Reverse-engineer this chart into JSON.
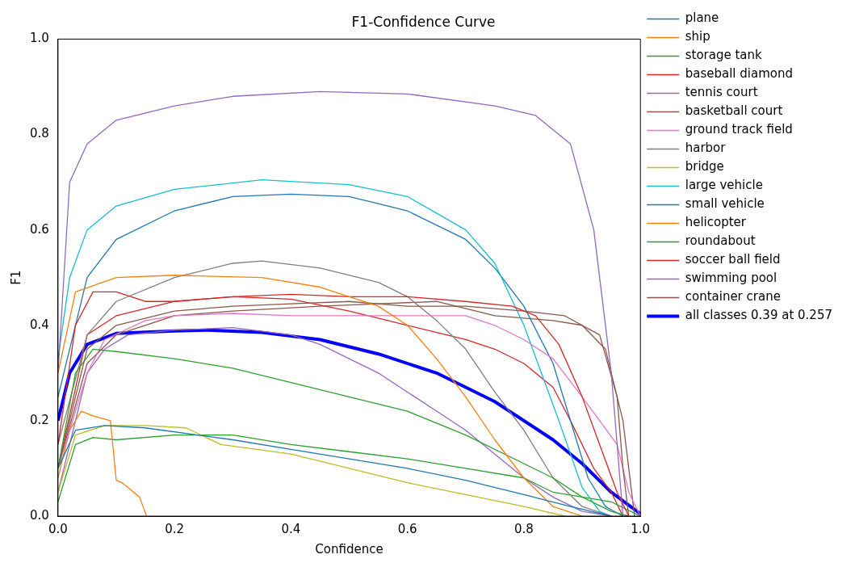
{
  "chart_data": {
    "type": "line",
    "title": "F1-Confidence Curve",
    "xlabel": "Confidence",
    "ylabel": "F1",
    "xlim": [
      0,
      1
    ],
    "ylim": [
      0,
      1
    ],
    "xticks": [
      {
        "value": 0,
        "label": "0.0"
      },
      {
        "value": 0.2,
        "label": "0.2"
      },
      {
        "value": 0.4,
        "label": "0.4"
      },
      {
        "value": 0.6,
        "label": "0.6"
      },
      {
        "value": 0.8,
        "label": "0.8"
      },
      {
        "value": 1,
        "label": "1.0"
      }
    ],
    "yticks": [
      {
        "value": 0,
        "label": "0.0"
      },
      {
        "value": 0.2,
        "label": "0.2"
      },
      {
        "value": 0.4,
        "label": "0.4"
      },
      {
        "value": 0.6,
        "label": "0.6"
      },
      {
        "value": 0.8,
        "label": "0.8"
      },
      {
        "value": 1,
        "label": "1.0"
      }
    ],
    "grid": false,
    "legend": "right",
    "marker": "none",
    "line_style": "solid",
    "series": [
      {
        "name": "plane",
        "color": "#1f77b4",
        "x": [
          0,
          0.03,
          0.08,
          0.15,
          0.3,
          0.4,
          0.5,
          0.6,
          0.7,
          0.8,
          0.88,
          0.95
        ],
        "values": [
          0.1,
          0.18,
          0.19,
          0.185,
          0.16,
          0.14,
          0.12,
          0.1,
          0.075,
          0.045,
          0.02,
          0
        ]
      },
      {
        "name": "ship",
        "color": "#ff7f0e",
        "x": [
          0,
          0.03,
          0.1,
          0.2,
          0.35,
          0.45,
          0.55,
          0.6,
          0.65,
          0.7,
          0.75,
          0.8,
          0.85,
          0.9
        ],
        "values": [
          0.3,
          0.47,
          0.5,
          0.505,
          0.5,
          0.48,
          0.44,
          0.4,
          0.33,
          0.25,
          0.16,
          0.08,
          0.02,
          0
        ]
      },
      {
        "name": "storage tank",
        "color": "#2ca02c",
        "x": [
          0,
          0.03,
          0.06,
          0.1,
          0.2,
          0.3,
          0.4,
          0.5,
          0.6,
          0.7,
          0.8,
          0.85,
          0.9,
          0.95,
          0.98
        ],
        "values": [
          0.1,
          0.3,
          0.35,
          0.345,
          0.33,
          0.31,
          0.28,
          0.25,
          0.22,
          0.17,
          0.11,
          0.08,
          0.04,
          0.01,
          0
        ]
      },
      {
        "name": "baseball diamond",
        "color": "#d62728",
        "x": [
          0,
          0.03,
          0.06,
          0.1,
          0.15,
          0.2,
          0.3,
          0.4,
          0.5,
          0.6,
          0.7,
          0.78,
          0.82,
          0.86,
          0.9,
          0.93,
          0.96,
          0.98
        ],
        "values": [
          0.15,
          0.4,
          0.47,
          0.47,
          0.45,
          0.45,
          0.46,
          0.465,
          0.46,
          0.46,
          0.45,
          0.44,
          0.42,
          0.36,
          0.25,
          0.15,
          0.05,
          0
        ]
      },
      {
        "name": "tennis court",
        "color": "#9467bd",
        "x": [
          0,
          0.02,
          0.05,
          0.1,
          0.2,
          0.3,
          0.45,
          0.6,
          0.75,
          0.82,
          0.88,
          0.92,
          0.95,
          0.97
        ],
        "values": [
          0.3,
          0.7,
          0.78,
          0.83,
          0.86,
          0.88,
          0.89,
          0.885,
          0.86,
          0.84,
          0.78,
          0.6,
          0.3,
          0
        ]
      },
      {
        "name": "basketball court",
        "color": "#8c564b",
        "x": [
          0,
          0.05,
          0.1,
          0.2,
          0.3,
          0.4,
          0.5,
          0.6,
          0.7,
          0.8,
          0.87,
          0.93,
          0.96,
          0.97,
          0.98
        ],
        "values": [
          0.1,
          0.35,
          0.4,
          0.43,
          0.44,
          0.445,
          0.45,
          0.44,
          0.44,
          0.43,
          0.42,
          0.38,
          0.25,
          0.1,
          0
        ]
      },
      {
        "name": "ground track field",
        "color": "#e377c2",
        "x": [
          0,
          0.05,
          0.08,
          0.15,
          0.2,
          0.3,
          0.4,
          0.5,
          0.6,
          0.7,
          0.75,
          0.8,
          0.85,
          0.9,
          0.93,
          0.96,
          0.98,
          1
        ],
        "values": [
          0.1,
          0.3,
          0.37,
          0.41,
          0.42,
          0.425,
          0.42,
          0.42,
          0.42,
          0.42,
          0.4,
          0.37,
          0.33,
          0.25,
          0.2,
          0.15,
          0.05,
          0
        ]
      },
      {
        "name": "harbor",
        "color": "#7f7f7f",
        "x": [
          0,
          0.05,
          0.1,
          0.2,
          0.3,
          0.35,
          0.45,
          0.55,
          0.6,
          0.65,
          0.7,
          0.75,
          0.8,
          0.85,
          0.9,
          0.95
        ],
        "values": [
          0.15,
          0.38,
          0.45,
          0.5,
          0.53,
          0.535,
          0.52,
          0.49,
          0.46,
          0.41,
          0.35,
          0.26,
          0.18,
          0.08,
          0.02,
          0
        ]
      },
      {
        "name": "bridge",
        "color": "#bcbd22",
        "x": [
          0,
          0.03,
          0.08,
          0.15,
          0.22,
          0.28,
          0.4,
          0.5,
          0.6,
          0.7,
          0.8,
          0.87
        ],
        "values": [
          0.05,
          0.17,
          0.19,
          0.19,
          0.185,
          0.15,
          0.13,
          0.1,
          0.07,
          0.045,
          0.02,
          0
        ]
      },
      {
        "name": "large vehicle",
        "color": "#17becf",
        "x": [
          0,
          0.02,
          0.05,
          0.1,
          0.2,
          0.35,
          0.5,
          0.6,
          0.7,
          0.75,
          0.8,
          0.86,
          0.9,
          0.93,
          0.95
        ],
        "values": [
          0.33,
          0.5,
          0.6,
          0.65,
          0.685,
          0.705,
          0.695,
          0.67,
          0.6,
          0.53,
          0.4,
          0.2,
          0.06,
          0.01,
          0
        ]
      },
      {
        "name": "small vehicle",
        "color": "#1f77b4",
        "x": [
          0,
          0.05,
          0.1,
          0.2,
          0.3,
          0.4,
          0.5,
          0.6,
          0.7,
          0.75,
          0.8,
          0.85,
          0.88,
          0.91,
          0.94,
          0.97
        ],
        "values": [
          0.25,
          0.5,
          0.58,
          0.64,
          0.67,
          0.675,
          0.67,
          0.64,
          0.58,
          0.52,
          0.44,
          0.32,
          0.2,
          0.08,
          0.02,
          0
        ]
      },
      {
        "name": "helicopter",
        "color": "#ff7f0e",
        "x": [
          0,
          0.02,
          0.04,
          0.06,
          0.09,
          0.1,
          0.11,
          0.12,
          0.14,
          0.152
        ],
        "values": [
          0.08,
          0.18,
          0.22,
          0.21,
          0.2,
          0.075,
          0.07,
          0.06,
          0.04,
          0
        ]
      },
      {
        "name": "roundabout",
        "color": "#2ca02c",
        "x": [
          0,
          0.03,
          0.06,
          0.1,
          0.2,
          0.3,
          0.4,
          0.5,
          0.6,
          0.7,
          0.8,
          0.85,
          0.9,
          0.95,
          1
        ],
        "values": [
          0.03,
          0.15,
          0.165,
          0.16,
          0.17,
          0.17,
          0.15,
          0.135,
          0.12,
          0.1,
          0.08,
          0.05,
          0.04,
          0.03,
          0
        ]
      },
      {
        "name": "soccer ball field",
        "color": "#d62728",
        "x": [
          0,
          0.05,
          0.1,
          0.2,
          0.3,
          0.4,
          0.5,
          0.6,
          0.7,
          0.75,
          0.8,
          0.85,
          0.88,
          0.92,
          0.95,
          0.97
        ],
        "values": [
          0.1,
          0.38,
          0.42,
          0.45,
          0.46,
          0.455,
          0.43,
          0.4,
          0.37,
          0.35,
          0.32,
          0.27,
          0.2,
          0.1,
          0.05,
          0
        ]
      },
      {
        "name": "swimming pool",
        "color": "#9467bd",
        "x": [
          0,
          0.05,
          0.08,
          0.12,
          0.2,
          0.3,
          0.4,
          0.45,
          0.5,
          0.55,
          0.6,
          0.65,
          0.7,
          0.75,
          0.8,
          0.85,
          0.9,
          0.95
        ],
        "values": [
          0.05,
          0.3,
          0.35,
          0.38,
          0.39,
          0.395,
          0.38,
          0.36,
          0.33,
          0.3,
          0.26,
          0.22,
          0.18,
          0.13,
          0.08,
          0.04,
          0.01,
          0
        ]
      },
      {
        "name": "container crane",
        "color": "#8c564b",
        "x": [
          0,
          0.05,
          0.1,
          0.2,
          0.3,
          0.45,
          0.55,
          0.65,
          0.75,
          0.85,
          0.9,
          0.94,
          0.97,
          0.99
        ],
        "values": [
          0.1,
          0.32,
          0.38,
          0.42,
          0.43,
          0.44,
          0.445,
          0.45,
          0.42,
          0.41,
          0.4,
          0.35,
          0.2,
          0
        ]
      },
      {
        "name": "all classes 0.39 at 0.257",
        "color": "#0000ff",
        "x": [
          0,
          0.02,
          0.05,
          0.1,
          0.2,
          0.257,
          0.35,
          0.45,
          0.55,
          0.65,
          0.75,
          0.85,
          0.9,
          0.95,
          1
        ],
        "values": [
          0.2,
          0.3,
          0.36,
          0.383,
          0.388,
          0.39,
          0.385,
          0.37,
          0.34,
          0.3,
          0.24,
          0.16,
          0.11,
          0.05,
          0.005
        ]
      }
    ]
  }
}
